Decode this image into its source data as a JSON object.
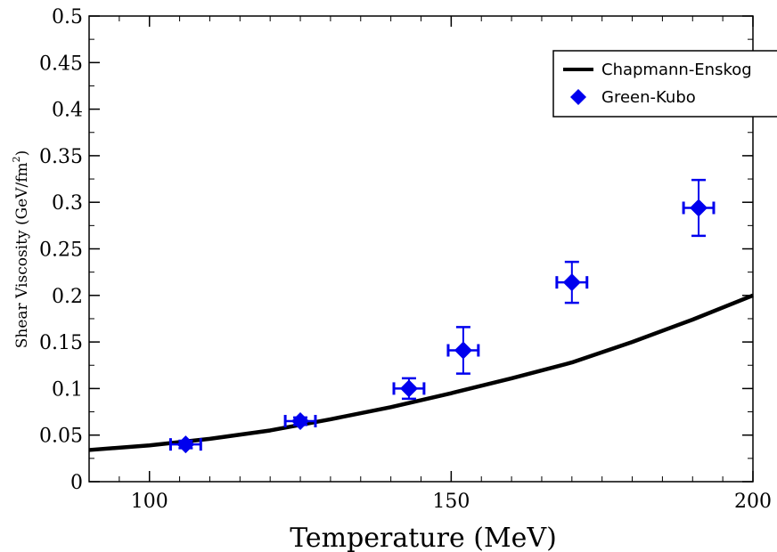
{
  "chart_data": {
    "type": "scatter",
    "xlabel": "Temperature (MeV)",
    "ylabel_main": "Shear Viscosity (GeV/fm",
    "ylabel_sup": "2",
    "ylabel_close": ")",
    "xlim": [
      90,
      200
    ],
    "ylim": [
      0,
      0.5
    ],
    "x_ticks": [
      {
        "value": 100,
        "label": "100"
      },
      {
        "value": 150,
        "label": "150"
      },
      {
        "value": 200,
        "label": "200"
      }
    ],
    "y_ticks": [
      {
        "value": 0,
        "label": "0"
      },
      {
        "value": 0.05,
        "label": "0.05"
      },
      {
        "value": 0.1,
        "label": "0.1"
      },
      {
        "value": 0.15,
        "label": "0.15"
      },
      {
        "value": 0.2,
        "label": "0.2"
      },
      {
        "value": 0.25,
        "label": "0.25"
      },
      {
        "value": 0.3,
        "label": "0.3"
      },
      {
        "value": 0.35,
        "label": "0.35"
      },
      {
        "value": 0.4,
        "label": "0.4"
      },
      {
        "value": 0.45,
        "label": "0.45"
      },
      {
        "value": 0.5,
        "label": "0.5"
      }
    ],
    "grid": false,
    "legend_position": "top-right",
    "series": [
      {
        "name": "Chapmann-Enskog",
        "kind": "line",
        "color": "#000000",
        "x": [
          90,
          100,
          110,
          120,
          130,
          140,
          150,
          160,
          170,
          180,
          190,
          200
        ],
        "y": [
          0.034,
          0.039,
          0.046,
          0.055,
          0.067,
          0.08,
          0.095,
          0.111,
          0.128,
          0.15,
          0.174,
          0.2
        ]
      },
      {
        "name": "Green-Kubo",
        "kind": "scatter",
        "marker": "diamond",
        "color": "#0000ee",
        "x": [
          106,
          125,
          143,
          152,
          170,
          191
        ],
        "y": [
          0.04,
          0.065,
          0.1,
          0.141,
          0.214,
          0.294
        ],
        "x_err": [
          2.5,
          2.5,
          2.5,
          2.5,
          2.5,
          2.5
        ],
        "y_err": [
          0.004,
          0.004,
          0.011,
          0.025,
          0.022,
          0.03
        ]
      }
    ]
  }
}
